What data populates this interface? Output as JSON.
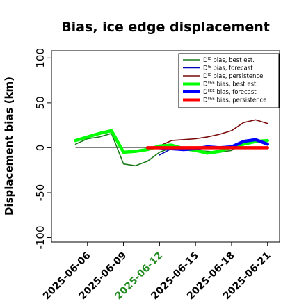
{
  "chart_data": {
    "type": "line",
    "title": "Bias, ice edge displacement",
    "ylabel": "Displacement bias (km)",
    "xlabel": "",
    "ylim": [
      -105,
      108
    ],
    "yticks": [
      -100,
      -50,
      0,
      50,
      100
    ],
    "xlim": [
      "2025-06-03",
      "2025-06-22"
    ],
    "xticks": [
      {
        "date": "2025-06-06",
        "label": "2025-06-06",
        "color": "#000000"
      },
      {
        "date": "2025-06-09",
        "label": "2025-06-09",
        "color": "#000000"
      },
      {
        "date": "2025-06-12",
        "label": "2025-06-12",
        "color": "#228b22"
      },
      {
        "date": "2025-06-15",
        "label": "2025-06-15",
        "color": "#000000"
      },
      {
        "date": "2025-06-18",
        "label": "2025-06-18",
        "color": "#000000"
      },
      {
        "date": "2025-06-21",
        "label": "2025-06-21",
        "color": "#000000"
      }
    ],
    "zero_line": {
      "from": "2025-06-05",
      "to": "2025-06-11",
      "value": 0,
      "color": "#808080"
    },
    "legend_position": "top-right",
    "series": [
      {
        "name": "bias, best est.",
        "name_prefix": "D",
        "name_sup": "IE",
        "color": "#1a7a1a",
        "width": 1.6,
        "x": [
          "2025-06-05",
          "2025-06-06",
          "2025-06-07",
          "2025-06-08",
          "2025-06-09",
          "2025-06-10",
          "2025-06-11",
          "2025-06-12",
          "2025-06-13",
          "2025-06-14",
          "2025-06-15",
          "2025-06-16",
          "2025-06-17",
          "2025-06-18",
          "2025-06-19",
          "2025-06-20",
          "2025-06-21"
        ],
        "values": [
          4,
          10,
          12,
          16,
          -18,
          -20,
          -15,
          -5,
          0,
          -2,
          -3,
          -4,
          -5,
          -3,
          5,
          8,
          4
        ]
      },
      {
        "name": "bias, forecast",
        "name_prefix": "D",
        "name_sup": "IE",
        "color": "#0000bb",
        "width": 1.6,
        "x": [
          "2025-06-12",
          "2025-06-13",
          "2025-06-14",
          "2025-06-15",
          "2025-06-16",
          "2025-06-17",
          "2025-06-18",
          "2025-06-19",
          "2025-06-20",
          "2025-06-21"
        ],
        "values": [
          -8,
          -1,
          -3,
          -2,
          1,
          0,
          2,
          8,
          10,
          5
        ]
      },
      {
        "name": "bias, persistence",
        "name_prefix": "D",
        "name_sup": "IE",
        "color": "#7a0a0a",
        "width": 1.6,
        "x": [
          "2025-06-11",
          "2025-06-12",
          "2025-06-13",
          "2025-06-14",
          "2025-06-15",
          "2025-06-16",
          "2025-06-17",
          "2025-06-18",
          "2025-06-19",
          "2025-06-20",
          "2025-06-21"
        ],
        "values": [
          0,
          2,
          8,
          9,
          10,
          12,
          15,
          19,
          28,
          31,
          27
        ]
      },
      {
        "name": "bias, best est.",
        "name_prefix": "D",
        "name_sup": "IIEE",
        "color": "#00ff00",
        "width": 4.5,
        "x": [
          "2025-06-05",
          "2025-06-06",
          "2025-06-07",
          "2025-06-08",
          "2025-06-09",
          "2025-06-10",
          "2025-06-11",
          "2025-06-12",
          "2025-06-13",
          "2025-06-14",
          "2025-06-15",
          "2025-06-16",
          "2025-06-17",
          "2025-06-18",
          "2025-06-19",
          "2025-06-20",
          "2025-06-21"
        ],
        "values": [
          8,
          12,
          16,
          19,
          -5,
          -4,
          -2,
          2,
          3,
          -1,
          -3,
          -6,
          -4,
          1,
          4,
          7,
          8
        ]
      },
      {
        "name": "bias, forecast",
        "name_prefix": "D",
        "name_sup": "IIEE",
        "color": "#0000ff",
        "width": 4.5,
        "x": [
          "2025-06-12",
          "2025-06-13",
          "2025-06-14",
          "2025-06-15",
          "2025-06-16",
          "2025-06-17",
          "2025-06-18",
          "2025-06-19",
          "2025-06-20",
          "2025-06-21"
        ],
        "values": [
          0,
          -1,
          -2,
          -1,
          1,
          0,
          1,
          7,
          9,
          4
        ]
      },
      {
        "name": "bias, persistence",
        "name_prefix": "D",
        "name_sup": "IIEE",
        "color": "#ff0000",
        "width": 4.5,
        "x": [
          "2025-06-11",
          "2025-06-12",
          "2025-06-13",
          "2025-06-14",
          "2025-06-15",
          "2025-06-16",
          "2025-06-17",
          "2025-06-18",
          "2025-06-19",
          "2025-06-20",
          "2025-06-21"
        ],
        "values": [
          0,
          0,
          0,
          0,
          0,
          0,
          0,
          0,
          0,
          0,
          0
        ]
      }
    ]
  }
}
